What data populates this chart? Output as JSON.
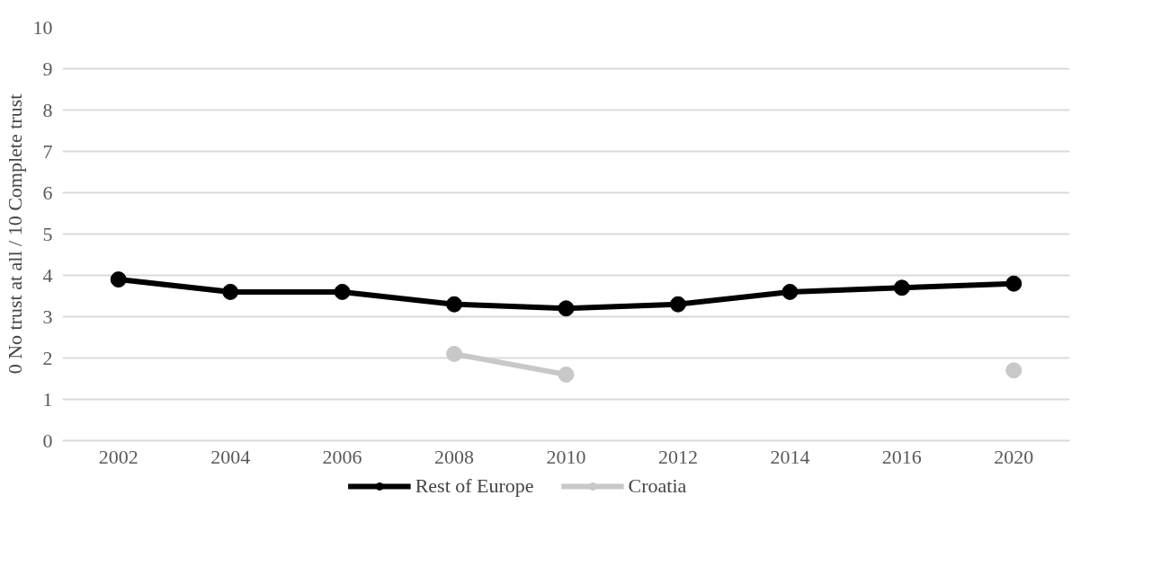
{
  "chart_data": {
    "type": "line",
    "ylabel": "0 No trust at all / 10 Complete trust",
    "categories": [
      "2002",
      "2004",
      "2006",
      "2008",
      "2010",
      "2012",
      "2014",
      "2016",
      "2020"
    ],
    "series": [
      {
        "name": "Rest of Europe",
        "color": "#000000",
        "values": [
          3.9,
          3.6,
          3.6,
          3.3,
          3.2,
          3.3,
          3.6,
          3.7,
          3.8
        ]
      },
      {
        "name": "Croatia",
        "color": "#c8c8c8",
        "values": [
          null,
          null,
          null,
          2.1,
          1.6,
          null,
          null,
          null,
          1.7
        ]
      }
    ],
    "ylim": [
      0,
      10
    ],
    "yticks": [
      0,
      1,
      2,
      3,
      4,
      5,
      6,
      7,
      8,
      9,
      10
    ],
    "grid": "y",
    "legend": "bottom",
    "marker": "circle",
    "line_style": "solid"
  }
}
